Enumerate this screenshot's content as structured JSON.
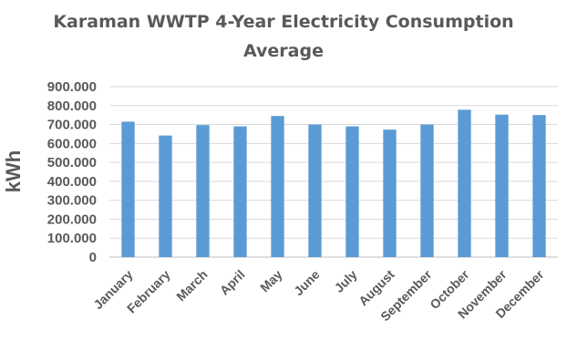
{
  "chart_data": {
    "type": "bar",
    "title_lines": [
      "Karaman WWTP 4-Year Electricity Consumption",
      "Average"
    ],
    "xlabel": "",
    "ylabel": "kWh",
    "ylim": [
      0,
      900000
    ],
    "yticks": [
      0,
      100000,
      200000,
      300000,
      400000,
      500000,
      600000,
      700000,
      800000,
      900000
    ],
    "ytick_labels": [
      "0",
      "100.000",
      "200.000",
      "300.000",
      "400.000",
      "500.000",
      "600.000",
      "700.000",
      "800.000",
      "900.000"
    ],
    "grid": true,
    "legend": "none",
    "bar_color": "#5b9bd5",
    "categories": [
      "January",
      "February",
      "March",
      "April",
      "May",
      "June",
      "July",
      "August",
      "September",
      "October",
      "November",
      "December"
    ],
    "values": [
      715000,
      642000,
      697000,
      690000,
      745000,
      700000,
      690000,
      673000,
      700000,
      778000,
      752000,
      750000
    ]
  }
}
